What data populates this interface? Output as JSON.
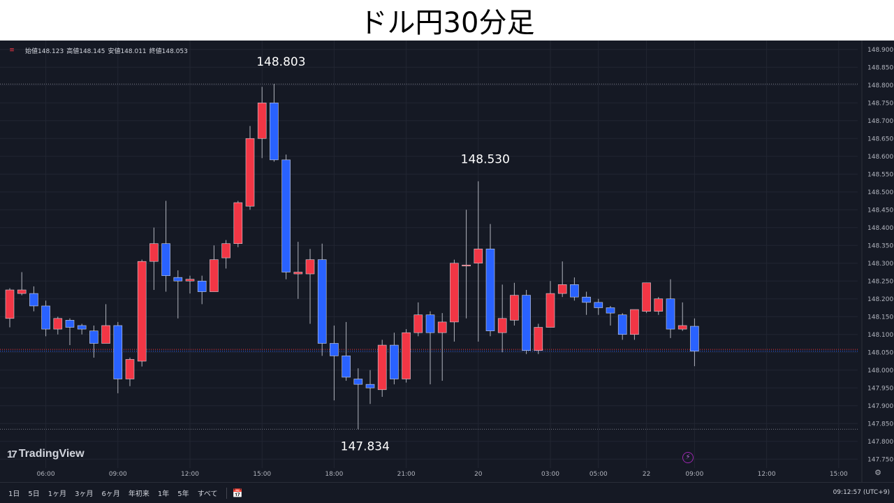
{
  "title": "ドル円30分足",
  "ohlc_header": {
    "open": "始値148.123",
    "high": "高値148.145",
    "low": "安値148.011",
    "close": "終値148.053"
  },
  "brand": "TradingView",
  "clock": "09:12:57 (UTC+9)",
  "range_buttons": [
    "1日",
    "5日",
    "1ヶ月",
    "3ヶ月",
    "6ヶ月",
    "年初来",
    "1年",
    "5年",
    "すべて"
  ],
  "colors": {
    "up": "#f23645",
    "down": "#2962ff",
    "background": "#151924",
    "grid": "#222632",
    "axis_text": "#b2b5be"
  },
  "chart_data": {
    "type": "candlestick",
    "title": "ドル円30分足",
    "ylim": [
      147.725,
      148.925
    ],
    "y_ticks": [
      "148.900",
      "148.850",
      "148.800",
      "148.750",
      "148.700",
      "148.650",
      "148.600",
      "148.550",
      "148.500",
      "148.450",
      "148.400",
      "148.350",
      "148.300",
      "148.250",
      "148.200",
      "148.150",
      "148.100",
      "148.050",
      "148.000",
      "147.950",
      "147.900",
      "147.850",
      "147.800",
      "147.750"
    ],
    "x_tick_labels": [
      {
        "bar": 3,
        "label": "06:00"
      },
      {
        "bar": 9,
        "label": "09:00"
      },
      {
        "bar": 15,
        "label": "12:00"
      },
      {
        "bar": 21,
        "label": "15:00"
      },
      {
        "bar": 27,
        "label": "18:00"
      },
      {
        "bar": 33,
        "label": "21:00"
      },
      {
        "bar": 39,
        "label": "20"
      },
      {
        "bar": 45,
        "label": "03:00"
      },
      {
        "bar": 49,
        "label": "05:00"
      },
      {
        "bar": 53,
        "label": "22"
      },
      {
        "bar": 57,
        "label": "09:00"
      },
      {
        "bar": 63,
        "label": "12:00"
      },
      {
        "bar": 69,
        "label": "15:00"
      }
    ],
    "candles": [
      {
        "o": 148.145,
        "h": 148.23,
        "l": 148.12,
        "c": 148.225
      },
      {
        "o": 148.215,
        "h": 148.275,
        "l": 148.21,
        "c": 148.225
      },
      {
        "o": 148.215,
        "h": 148.235,
        "l": 148.165,
        "c": 148.18
      },
      {
        "o": 148.18,
        "h": 148.195,
        "l": 148.095,
        "c": 148.115
      },
      {
        "o": 148.115,
        "h": 148.15,
        "l": 148.1,
        "c": 148.145
      },
      {
        "o": 148.14,
        "h": 148.145,
        "l": 148.07,
        "c": 148.12
      },
      {
        "o": 148.125,
        "h": 148.13,
        "l": 148.1,
        "c": 148.115
      },
      {
        "o": 148.11,
        "h": 148.125,
        "l": 148.035,
        "c": 148.075
      },
      {
        "o": 148.075,
        "h": 148.185,
        "l": 148.075,
        "c": 148.125
      },
      {
        "o": 148.125,
        "h": 148.135,
        "l": 147.935,
        "c": 147.975
      },
      {
        "o": 147.975,
        "h": 148.035,
        "l": 147.955,
        "c": 148.03
      },
      {
        "o": 148.025,
        "h": 148.31,
        "l": 148.01,
        "c": 148.305
      },
      {
        "o": 148.305,
        "h": 148.4,
        "l": 148.225,
        "c": 148.355
      },
      {
        "o": 148.355,
        "h": 148.475,
        "l": 148.22,
        "c": 148.265
      },
      {
        "o": 148.26,
        "h": 148.28,
        "l": 148.145,
        "c": 148.25
      },
      {
        "o": 148.25,
        "h": 148.265,
        "l": 148.215,
        "c": 148.255
      },
      {
        "o": 148.25,
        "h": 148.265,
        "l": 148.185,
        "c": 148.22
      },
      {
        "o": 148.22,
        "h": 148.35,
        "l": 148.22,
        "c": 148.31
      },
      {
        "o": 148.315,
        "h": 148.365,
        "l": 148.285,
        "c": 148.355
      },
      {
        "o": 148.355,
        "h": 148.475,
        "l": 148.345,
        "c": 148.47
      },
      {
        "o": 148.46,
        "h": 148.685,
        "l": 148.45,
        "c": 148.65
      },
      {
        "o": 148.65,
        "h": 148.795,
        "l": 148.595,
        "c": 148.75
      },
      {
        "o": 148.75,
        "h": 148.803,
        "l": 148.585,
        "c": 148.59
      },
      {
        "o": 148.59,
        "h": 148.605,
        "l": 148.255,
        "c": 148.275
      },
      {
        "o": 148.27,
        "h": 148.36,
        "l": 148.2,
        "c": 148.275
      },
      {
        "o": 148.27,
        "h": 148.34,
        "l": 148.13,
        "c": 148.31
      },
      {
        "o": 148.31,
        "h": 148.355,
        "l": 148.04,
        "c": 148.075
      },
      {
        "o": 148.075,
        "h": 148.125,
        "l": 147.915,
        "c": 148.04
      },
      {
        "o": 148.04,
        "h": 148.135,
        "l": 147.97,
        "c": 147.98
      },
      {
        "o": 147.975,
        "h": 148.005,
        "l": 147.834,
        "c": 147.96
      },
      {
        "o": 147.96,
        "h": 148.0,
        "l": 147.905,
        "c": 147.95
      },
      {
        "o": 147.945,
        "h": 148.085,
        "l": 147.925,
        "c": 148.07
      },
      {
        "o": 148.07,
        "h": 148.105,
        "l": 147.96,
        "c": 147.975
      },
      {
        "o": 147.975,
        "h": 148.115,
        "l": 147.965,
        "c": 148.105
      },
      {
        "o": 148.105,
        "h": 148.19,
        "l": 148.095,
        "c": 148.155
      },
      {
        "o": 148.155,
        "h": 148.165,
        "l": 147.96,
        "c": 148.105
      },
      {
        "o": 148.105,
        "h": 148.16,
        "l": 147.97,
        "c": 148.135
      },
      {
        "o": 148.135,
        "h": 148.31,
        "l": 148.08,
        "c": 148.3
      },
      {
        "o": 148.295,
        "h": 148.45,
        "l": 148.145,
        "c": 148.295
      },
      {
        "o": 148.3,
        "h": 148.53,
        "l": 148.08,
        "c": 148.34
      },
      {
        "o": 148.34,
        "h": 148.41,
        "l": 148.095,
        "c": 148.11
      },
      {
        "o": 148.105,
        "h": 148.24,
        "l": 148.05,
        "c": 148.145
      },
      {
        "o": 148.14,
        "h": 148.245,
        "l": 148.125,
        "c": 148.21
      },
      {
        "o": 148.21,
        "h": 148.225,
        "l": 148.045,
        "c": 148.055
      },
      {
        "o": 148.055,
        "h": 148.13,
        "l": 148.045,
        "c": 148.12
      },
      {
        "o": 148.12,
        "h": 148.25,
        "l": 148.12,
        "c": 148.215
      },
      {
        "o": 148.215,
        "h": 148.305,
        "l": 148.205,
        "c": 148.24
      },
      {
        "o": 148.24,
        "h": 148.26,
        "l": 148.195,
        "c": 148.205
      },
      {
        "o": 148.205,
        "h": 148.22,
        "l": 148.155,
        "c": 148.19
      },
      {
        "o": 148.19,
        "h": 148.2,
        "l": 148.155,
        "c": 148.175
      },
      {
        "o": 148.175,
        "h": 148.18,
        "l": 148.125,
        "c": 148.16
      },
      {
        "o": 148.155,
        "h": 148.16,
        "l": 148.085,
        "c": 148.1
      },
      {
        "o": 148.1,
        "h": 148.17,
        "l": 148.085,
        "c": 148.17
      },
      {
        "o": 148.165,
        "h": 148.245,
        "l": 148.16,
        "c": 148.245
      },
      {
        "o": 148.165,
        "h": 148.205,
        "l": 148.155,
        "c": 148.2
      },
      {
        "o": 148.2,
        "h": 148.255,
        "l": 148.09,
        "c": 148.115
      },
      {
        "o": 148.115,
        "h": 148.19,
        "l": 148.11,
        "c": 148.125
      },
      {
        "o": 148.123,
        "h": 148.145,
        "l": 148.011,
        "c": 148.053
      }
    ],
    "annotations": [
      {
        "label": "148.803",
        "bar": 22,
        "position": "above"
      },
      {
        "label": "148.530",
        "bar": 39,
        "position": "above"
      },
      {
        "label": "147.834",
        "bar": 29,
        "position": "below"
      }
    ],
    "reference_lines": [
      148.803,
      147.834
    ],
    "bid_line": 148.058,
    "last_line": 148.053,
    "grid": true
  }
}
